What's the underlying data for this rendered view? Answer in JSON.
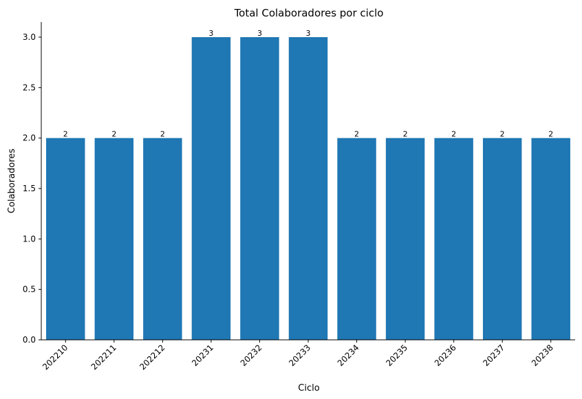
{
  "chart_data": {
    "type": "bar",
    "title": "Total Colaboradores por ciclo",
    "xlabel": "Ciclo",
    "ylabel": "Colaboradores",
    "categories": [
      "202210",
      "202211",
      "202212",
      "20231",
      "20232",
      "20233",
      "20234",
      "20235",
      "20236",
      "20237",
      "20238"
    ],
    "values": [
      2,
      2,
      2,
      3,
      3,
      3,
      2,
      2,
      2,
      2,
      2
    ],
    "data_labels": [
      "2",
      "2",
      "2",
      "3",
      "3",
      "3",
      "2",
      "2",
      "2",
      "2",
      "2"
    ],
    "ylim": [
      0,
      3.15
    ],
    "yticks": [
      "0.0",
      "0.5",
      "1.0",
      "1.5",
      "2.0",
      "2.5",
      "3.0"
    ],
    "ytick_values": [
      0,
      0.5,
      1.0,
      1.5,
      2.0,
      2.5,
      3.0
    ],
    "bar_color": "#1f77b4",
    "grid": false,
    "legend": "none"
  }
}
